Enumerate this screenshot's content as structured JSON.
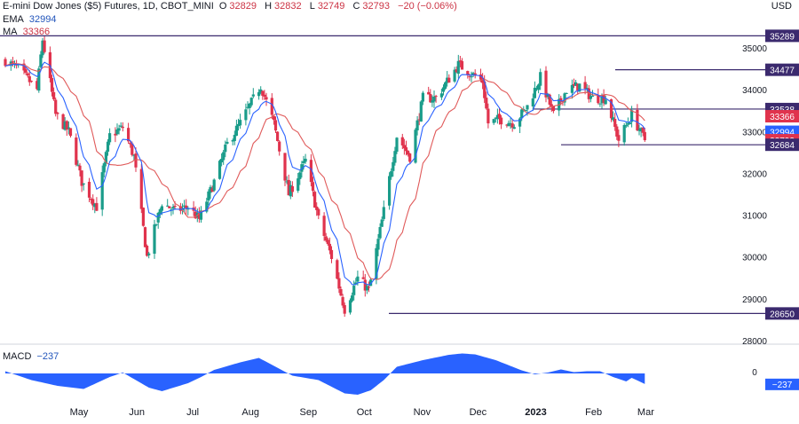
{
  "header": {
    "symbol": "E-mini Dow Jones ($5) Futures, 1D, CBOT_MINI",
    "o_label": "O",
    "o_value": "32829",
    "h_label": "H",
    "h_value": "32832",
    "l_label": "L",
    "l_value": "32749",
    "c_label": "C",
    "c_value": "32793",
    "change": "−20 (−0.06%)",
    "ema_label": "EMA",
    "ema_value": "32994",
    "ma_label": "MA",
    "ma_value": "33366",
    "macd_label": "MACD",
    "macd_value": "−237",
    "currency": "USD"
  },
  "colors": {
    "up": "#1a9c8a",
    "down": "#e0334d",
    "ema": "#2962ff",
    "ma": "#e05a5a",
    "level": "#3b2a6e",
    "macd": "#2962ff",
    "grid": "#e0e3eb"
  },
  "chart_data": [
    {
      "type": "candlestick",
      "title": "E-mini Dow Jones ($5) Futures, 1D, CBOT_MINI",
      "y_ticks": [
        "35000",
        "34000",
        "33000",
        "32000",
        "31000",
        "30000",
        "29000",
        "28000"
      ],
      "ylim": [
        28000,
        35500
      ],
      "x_ticks": [
        "May",
        "Jun",
        "Jul",
        "Aug",
        "Sep",
        "Oct",
        "Nov",
        "Dec",
        "2023",
        "Feb",
        "Mar"
      ],
      "grid": false,
      "anchors": [
        [
          "Apr 1",
          34700
        ],
        [
          "Apr 8",
          34500
        ],
        [
          "Apr 18",
          34000
        ],
        [
          "Apr 21",
          35200
        ],
        [
          "Apr 28",
          33400
        ],
        [
          "May 5",
          33000
        ],
        [
          "May 12",
          31800
        ],
        [
          "May 20",
          31200
        ],
        [
          "May 27",
          32900
        ],
        [
          "Jun 3",
          33100
        ],
        [
          "Jun 9",
          32400
        ],
        [
          "Jun 16",
          30000
        ],
        [
          "Jun 24",
          31300
        ],
        [
          "Jul 1",
          31100
        ],
        [
          "Jul 8",
          31200
        ],
        [
          "Jul 14",
          30900
        ],
        [
          "Jul 22",
          31800
        ],
        [
          "Jul 29",
          32700
        ],
        [
          "Aug 5",
          33200
        ],
        [
          "Aug 16",
          34100
        ],
        [
          "Aug 23",
          33200
        ],
        [
          "Aug 31",
          31500
        ],
        [
          "Sep 9",
          32300
        ],
        [
          "Sep 16",
          30900
        ],
        [
          "Sep 23",
          30000
        ],
        [
          "Sep 30",
          28750
        ],
        [
          "Oct 7",
          29500
        ],
        [
          "Oct 13",
          29200
        ],
        [
          "Oct 21",
          31100
        ],
        [
          "Oct 28",
          32900
        ],
        [
          "Nov 4",
          32400
        ],
        [
          "Nov 11",
          33800
        ],
        [
          "Nov 18",
          33800
        ],
        [
          "Nov 30",
          34600
        ],
        [
          "Dec 13",
          34200
        ],
        [
          "Dec 16",
          33200
        ],
        [
          "Dec 22",
          33300
        ],
        [
          "Dec 30",
          33200
        ],
        [
          "Jan 6",
          33600
        ],
        [
          "Jan 13",
          34300
        ],
        [
          "Jan 20",
          33400
        ],
        [
          "Jan 27",
          34000
        ],
        [
          "Feb 3",
          34100
        ],
        [
          "Feb 10",
          33800
        ],
        [
          "Feb 17",
          33800
        ],
        [
          "Feb 24",
          32800
        ],
        [
          "Mar 3",
          33400
        ],
        [
          "Mar 10",
          32793
        ]
      ],
      "levels": [
        35289,
        34477,
        33538,
        32684,
        28650
      ],
      "price_labels": [
        {
          "value": 35289,
          "text": "35289",
          "color": "#3b2a6e"
        },
        {
          "value": 34477,
          "text": "34477",
          "color": "#3b2a6e"
        },
        {
          "value": 33538,
          "text": "33538",
          "color": "#3b2a6e"
        },
        {
          "value": 33366,
          "text": "33366",
          "color": "#e0334d"
        },
        {
          "value": 32994,
          "text": "32994",
          "color": "#2962ff"
        },
        {
          "value": 32793,
          "text": "32793",
          "color": "#e0334d"
        },
        {
          "value": 32684,
          "text": "32684",
          "color": "#3b2a6e"
        },
        {
          "value": 28650,
          "text": "28650",
          "color": "#3b2a6e"
        }
      ],
      "series": [
        {
          "name": "EMA",
          "type": "line",
          "last": 32994
        },
        {
          "name": "MA",
          "type": "line",
          "last": 33366
        }
      ]
    },
    {
      "type": "area",
      "title": "MACD",
      "y_ticks": [
        "0"
      ],
      "last_label": "−237",
      "anchors": [
        [
          "Apr 1",
          50
        ],
        [
          "Apr 15",
          -150
        ],
        [
          "Apr 29",
          -280
        ],
        [
          "May 13",
          -350
        ],
        [
          "May 27",
          -80
        ],
        [
          "Jun 3",
          20
        ],
        [
          "Jun 17",
          -320
        ],
        [
          "Jun 24",
          -400
        ],
        [
          "Jul 8",
          -220
        ],
        [
          "Jul 15",
          -80
        ],
        [
          "Jul 22",
          80
        ],
        [
          "Aug 5",
          250
        ],
        [
          "Aug 15",
          350
        ],
        [
          "Aug 24",
          150
        ],
        [
          "Sep 2",
          -50
        ],
        [
          "Sep 16",
          -150
        ],
        [
          "Sep 30",
          -450
        ],
        [
          "Oct 7",
          -480
        ],
        [
          "Oct 14",
          -380
        ],
        [
          "Oct 21",
          -150
        ],
        [
          "Oct 28",
          150
        ],
        [
          "Nov 11",
          300
        ],
        [
          "Nov 25",
          420
        ],
        [
          "Dec 2",
          450
        ],
        [
          "Dec 9",
          430
        ],
        [
          "Dec 20",
          300
        ],
        [
          "Jan 3",
          70
        ],
        [
          "Jan 10",
          -20
        ],
        [
          "Jan 17",
          20
        ],
        [
          "Jan 24",
          90
        ],
        [
          "Jan 31",
          30
        ],
        [
          "Feb 7",
          50
        ],
        [
          "Feb 14",
          50
        ],
        [
          "Feb 21",
          -80
        ],
        [
          "Feb 28",
          -180
        ],
        [
          "Mar 3",
          -100
        ],
        [
          "Mar 10",
          -237
        ]
      ]
    }
  ]
}
